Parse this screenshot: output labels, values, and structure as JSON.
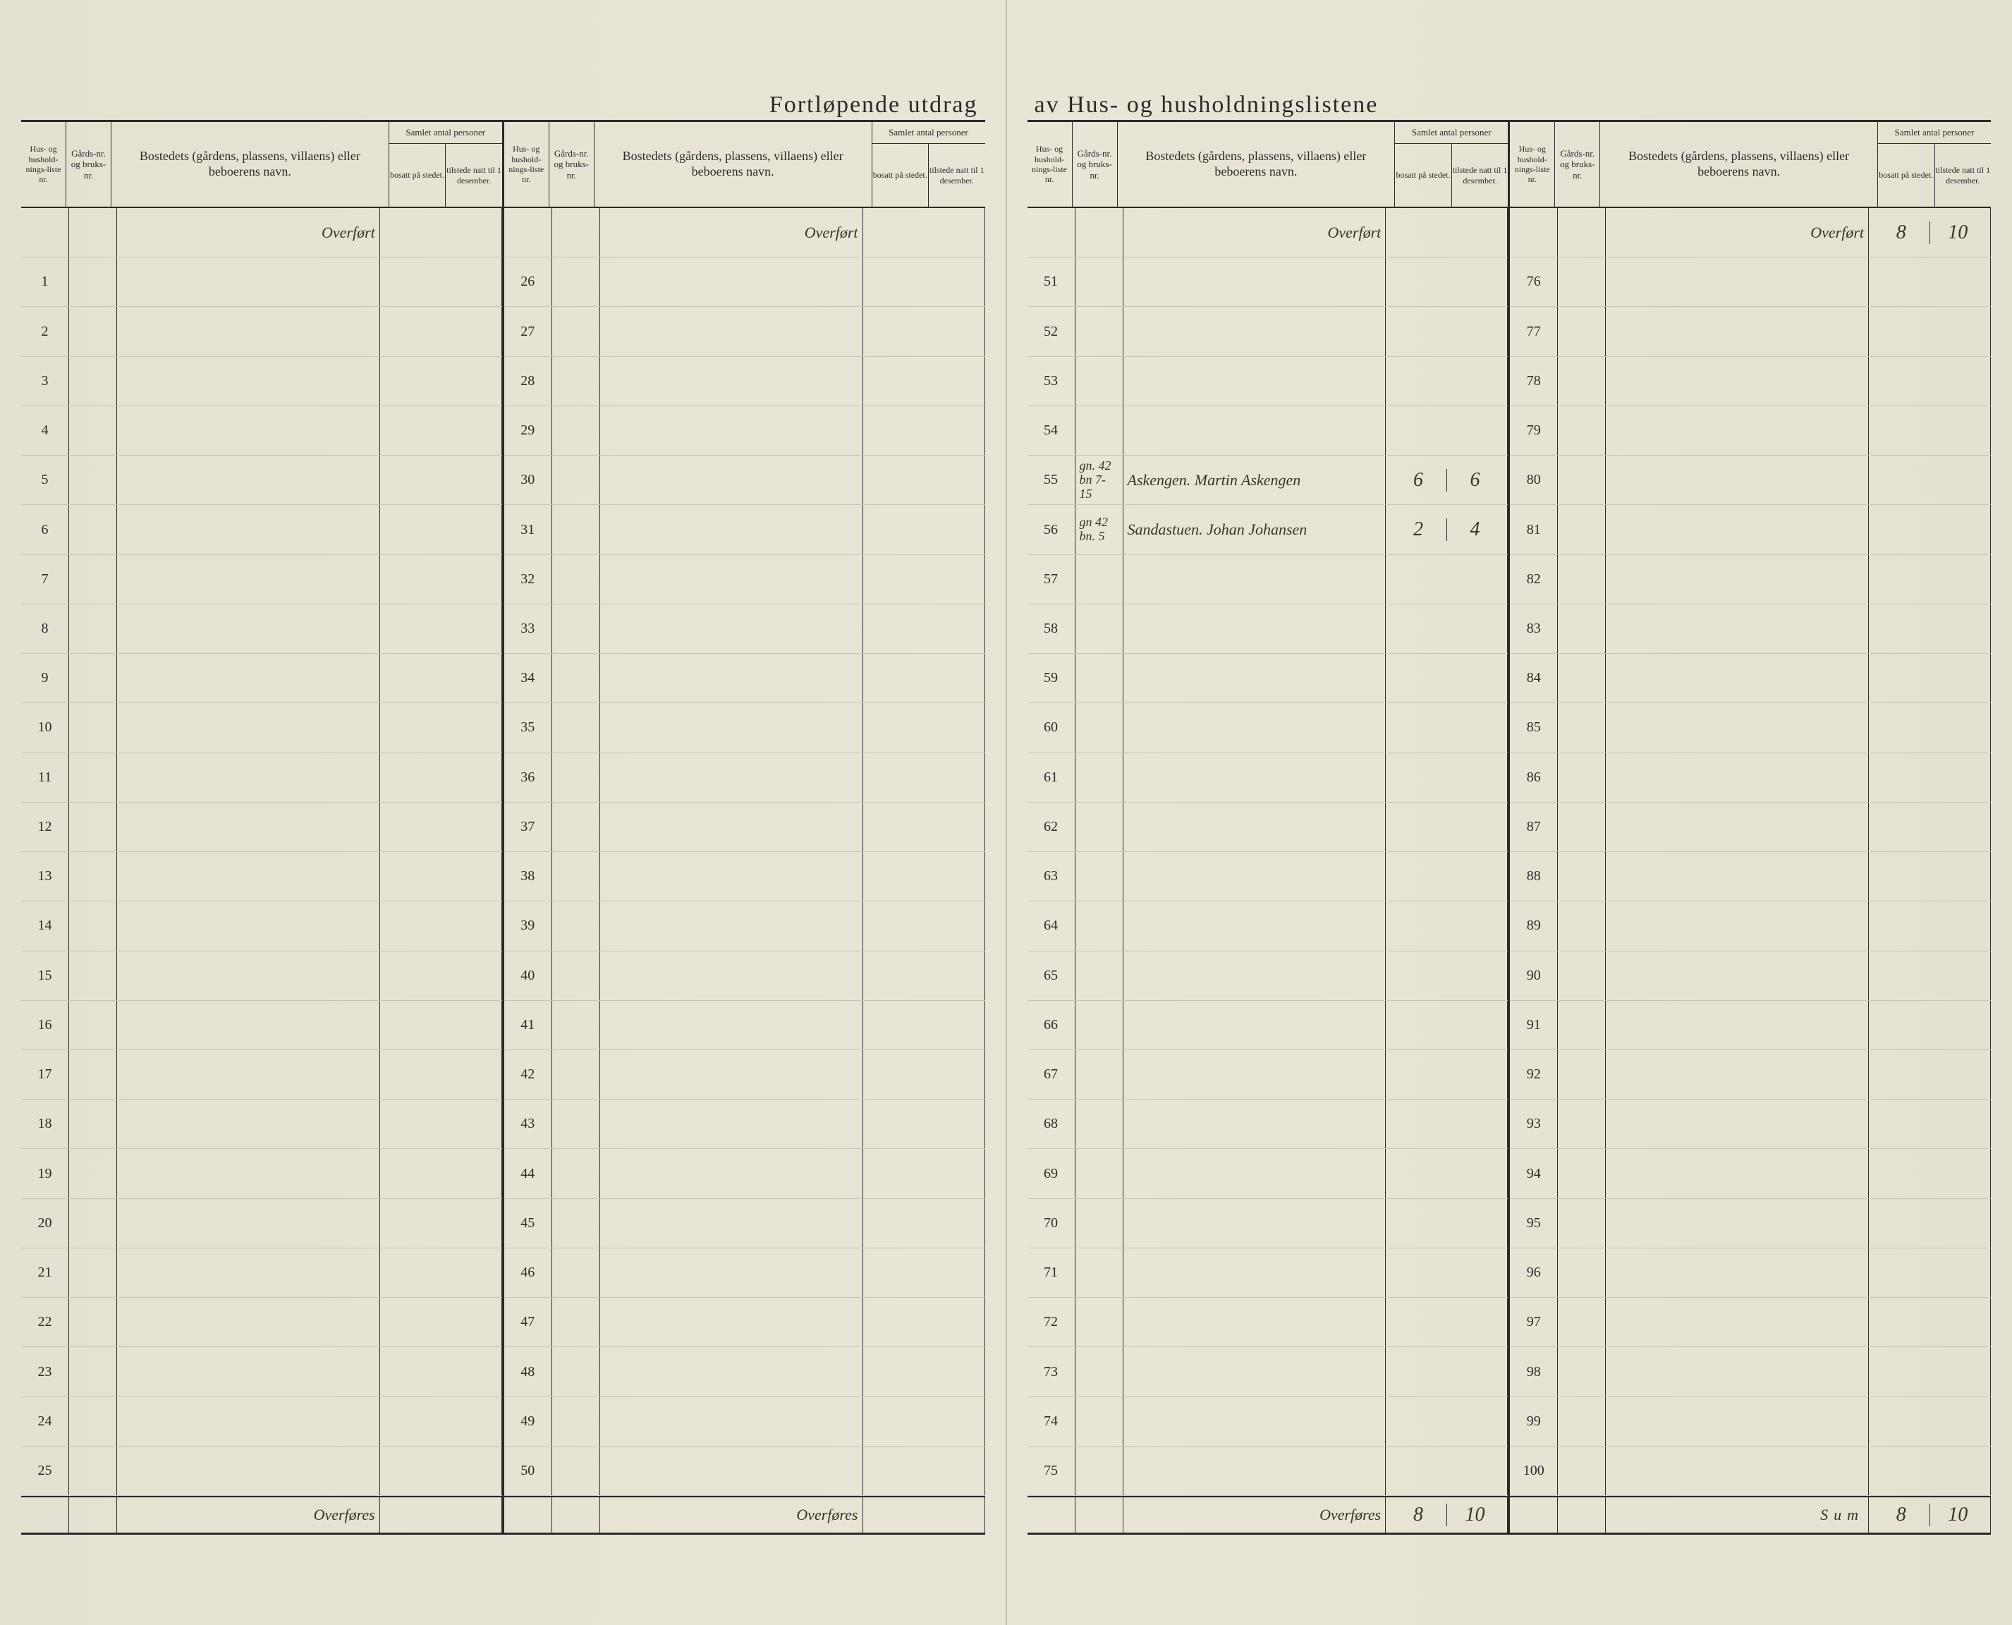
{
  "title_left": "Fortløpende utdrag",
  "title_right": "av Hus- og husholdningslistene",
  "headers": {
    "liste": "Hus- og hushold-nings-liste nr.",
    "gard": "Gårds-nr. og bruks-nr.",
    "bosted": "Bostedets (gårdens, plassens, villaens) eller beboerens navn.",
    "samlet": "Samlet antal personer",
    "bosatt": "bosatt på stedet.",
    "tilstede": "tilstede natt til 1 desember."
  },
  "overfort": "Overført",
  "overfores": "Overføres",
  "sum": "Sum",
  "row_numbers": {
    "b1": [
      1,
      2,
      3,
      4,
      5,
      6,
      7,
      8,
      9,
      10,
      11,
      12,
      13,
      14,
      15,
      16,
      17,
      18,
      19,
      20,
      21,
      22,
      23,
      24,
      25
    ],
    "b2": [
      26,
      27,
      28,
      29,
      30,
      31,
      32,
      33,
      34,
      35,
      36,
      37,
      38,
      39,
      40,
      41,
      42,
      43,
      44,
      45,
      46,
      47,
      48,
      49,
      50
    ],
    "b3": [
      51,
      52,
      53,
      54,
      55,
      56,
      57,
      58,
      59,
      60,
      61,
      62,
      63,
      64,
      65,
      66,
      67,
      68,
      69,
      70,
      71,
      72,
      73,
      74,
      75
    ],
    "b4": [
      76,
      77,
      78,
      79,
      80,
      81,
      82,
      83,
      84,
      85,
      86,
      87,
      88,
      89,
      90,
      91,
      92,
      93,
      94,
      95,
      96,
      97,
      98,
      99,
      100
    ]
  },
  "entries": {
    "55": {
      "gard": "gn. 42 bn 7-15",
      "bosted": "Askengen. Martin Askengen",
      "bosatt": "6",
      "tilstede": "6"
    },
    "56": {
      "gard": "gn 42 bn. 5",
      "bosted": "Sandastuen. Johan Johansen",
      "bosatt": "2",
      "tilstede": "4"
    }
  },
  "carry": {
    "b4_overfort_bosatt": "8",
    "b4_overfort_tilstede": "10",
    "b3_overfores_bosatt": "8",
    "b3_overfores_tilstede": "10",
    "sum_bosatt": "8",
    "sum_tilstede": "10"
  },
  "colors": {
    "paper": "#e8e4d5",
    "ink": "#2a2a2a",
    "rule": "#c8c4b2",
    "handwriting": "#3a3428"
  }
}
